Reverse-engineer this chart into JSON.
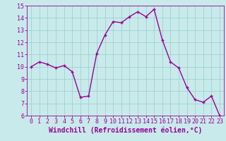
{
  "x": [
    0,
    1,
    2,
    3,
    4,
    5,
    6,
    7,
    8,
    9,
    10,
    11,
    12,
    13,
    14,
    15,
    16,
    17,
    18,
    19,
    20,
    21,
    22,
    23
  ],
  "y": [
    10.0,
    10.4,
    10.2,
    9.9,
    10.1,
    9.6,
    7.5,
    7.6,
    11.1,
    12.6,
    13.7,
    13.6,
    14.1,
    14.5,
    14.1,
    14.7,
    12.2,
    10.4,
    9.9,
    8.3,
    7.3,
    7.1,
    7.6,
    6.0
  ],
  "line_color": "#990099",
  "marker_color": "#990099",
  "bg_color": "#c8eaea",
  "grid_color": "#99cccc",
  "xlabel": "Windchill (Refroidissement éolien,°C)",
  "ylim": [
    6,
    15
  ],
  "xlim_min": -0.5,
  "xlim_max": 23.5,
  "yticks": [
    6,
    7,
    8,
    9,
    10,
    11,
    12,
    13,
    14,
    15
  ],
  "xticks": [
    0,
    1,
    2,
    3,
    4,
    5,
    6,
    7,
    8,
    9,
    10,
    11,
    12,
    13,
    14,
    15,
    16,
    17,
    18,
    19,
    20,
    21,
    22,
    23
  ],
  "tick_color": "#990099",
  "tick_fontsize": 6,
  "xlabel_fontsize": 7,
  "line_width": 1.0,
  "marker_size": 2.5
}
